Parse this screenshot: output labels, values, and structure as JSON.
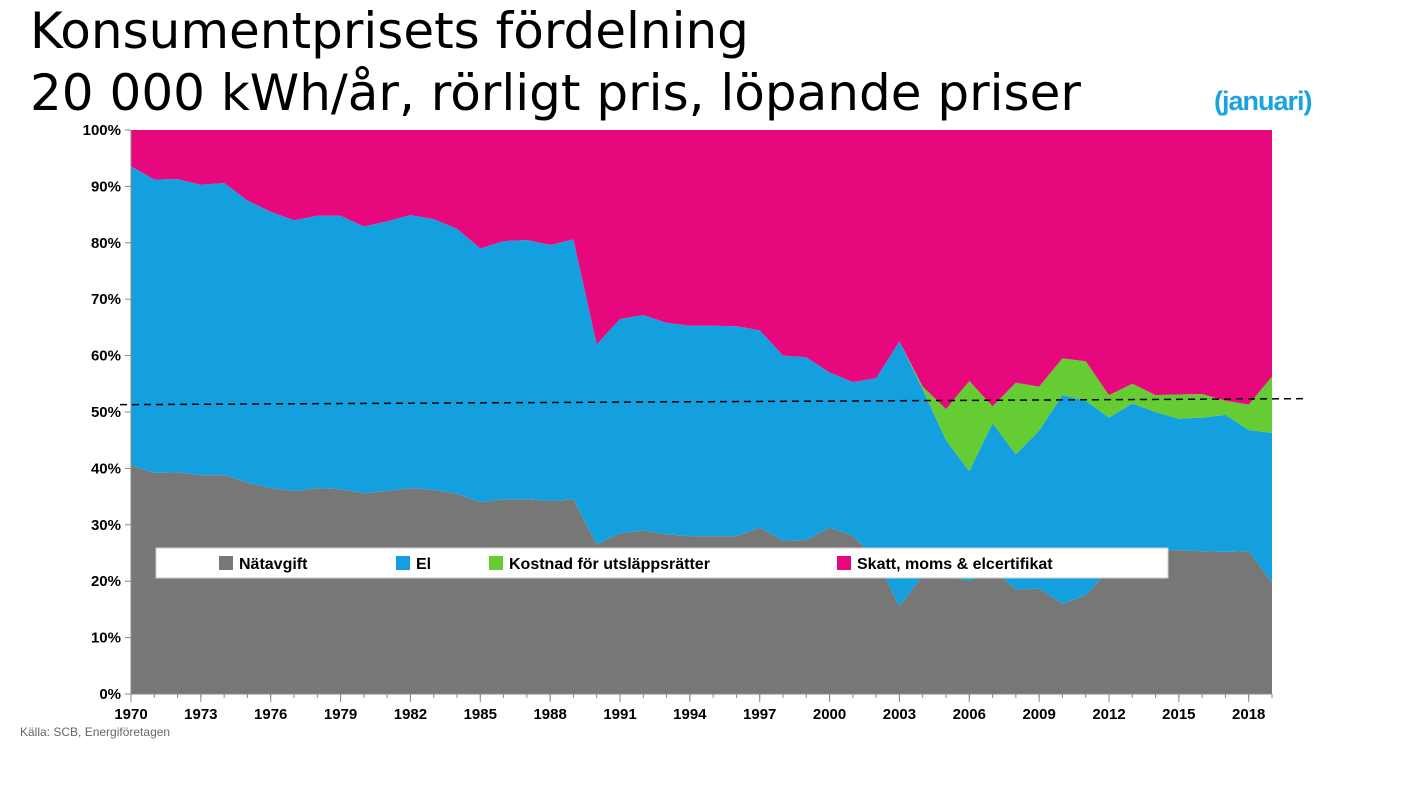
{
  "title_line1": "Konsumentprisets fördelning",
  "title_line2": "20 000 kWh/år, rörligt pris, löpande priser",
  "note": "(januari)",
  "source": "Källa: SCB, Energiföretagen",
  "chart_data": {
    "type": "area",
    "stacked": true,
    "x": [
      1970,
      1971,
      1972,
      1973,
      1974,
      1975,
      1976,
      1977,
      1978,
      1979,
      1980,
      1981,
      1982,
      1983,
      1984,
      1985,
      1986,
      1987,
      1988,
      1989,
      1990,
      1991,
      1992,
      1993,
      1994,
      1995,
      1996,
      1997,
      1998,
      1999,
      2000,
      2001,
      2002,
      2003,
      2004,
      2005,
      2006,
      2007,
      2008,
      2009,
      2010,
      2011,
      2012,
      2013,
      2014,
      2015,
      2016,
      2017,
      2018,
      2019
    ],
    "xticks": [
      "1970",
      "1973",
      "1976",
      "1979",
      "1982",
      "1985",
      "1988",
      "1991",
      "1994",
      "1997",
      "2000",
      "2003",
      "2006",
      "2009",
      "2012",
      "2015",
      "2018"
    ],
    "yticks": [
      "0%",
      "10%",
      "20%",
      "30%",
      "40%",
      "50%",
      "60%",
      "70%",
      "80%",
      "90%",
      "100%"
    ],
    "ylim": [
      0,
      100
    ],
    "series": [
      {
        "name": "Nätavgift",
        "color": "#777777",
        "values": [
          40.5,
          39.2,
          39.3,
          38.8,
          38.8,
          37.5,
          36.5,
          36.0,
          36.5,
          36.3,
          35.6,
          36.0,
          36.5,
          36.2,
          35.5,
          34.0,
          34.5,
          34.5,
          34.2,
          34.5,
          26.5,
          28.5,
          29.0,
          28.3,
          28.0,
          28.0,
          28.0,
          29.5,
          27.2,
          27.3,
          29.5,
          28.0,
          24.0,
          15.5,
          21.0,
          21.0,
          20.0,
          22.0,
          18.5,
          18.7,
          16.0,
          17.5,
          22.0,
          23.0,
          25.5,
          25.5,
          25.3,
          25.2,
          25.3,
          19.8
        ]
      },
      {
        "name": "El",
        "color": "#14a0de",
        "values": [
          53.1,
          52.0,
          52.0,
          51.5,
          51.8,
          50.0,
          49.0,
          48.0,
          48.3,
          48.5,
          47.3,
          47.8,
          48.4,
          48.0,
          47.0,
          45.0,
          45.8,
          46.0,
          45.4,
          46.1,
          35.5,
          38.0,
          38.2,
          37.5,
          37.3,
          37.3,
          37.2,
          35.0,
          32.8,
          32.4,
          27.5,
          27.3,
          32.0,
          47.0,
          33.0,
          24.0,
          19.5,
          26.0,
          24.0,
          28.0,
          37.0,
          34.5,
          27.0,
          28.5,
          24.5,
          23.3,
          23.7,
          24.3,
          21.5,
          26.5
        ]
      },
      {
        "name": "Kostnad för utsläppsrätter",
        "color": "#66cc33",
        "values": [
          0,
          0,
          0,
          0,
          0,
          0,
          0,
          0,
          0,
          0,
          0,
          0,
          0,
          0,
          0,
          0,
          0,
          0,
          0,
          0,
          0,
          0,
          0,
          0,
          0,
          0,
          0,
          0,
          0,
          0,
          0,
          0,
          0,
          0,
          0.5,
          5.5,
          16.0,
          3.0,
          12.7,
          7.8,
          6.5,
          7.0,
          4.0,
          3.5,
          3.0,
          4.3,
          4.2,
          2.5,
          4.5,
          10.0
        ]
      },
      {
        "name": "Skatt, moms & elcertifikat",
        "color": "#e8087e",
        "values": [
          6.4,
          8.8,
          8.7,
          9.7,
          9.4,
          12.5,
          14.5,
          16.0,
          15.2,
          15.2,
          17.1,
          16.2,
          15.1,
          15.8,
          17.5,
          21.0,
          19.7,
          19.5,
          20.4,
          19.4,
          38.0,
          33.5,
          32.8,
          34.2,
          34.7,
          34.7,
          34.8,
          35.5,
          40.0,
          40.3,
          43.0,
          44.7,
          44.0,
          37.5,
          45.5,
          49.5,
          44.5,
          49.0,
          44.8,
          45.5,
          40.5,
          41.0,
          47.0,
          45.0,
          47.0,
          46.9,
          46.8,
          48.0,
          48.7,
          43.7
        ]
      }
    ],
    "reference_line": {
      "value": 51.3,
      "style": "dashed"
    },
    "legend": {
      "position": "bottom-left-inside",
      "entries": [
        "Nätavgift",
        "El",
        "Kostnad för utsläppsrätter",
        "Skatt, moms & elcertifikat"
      ]
    }
  }
}
